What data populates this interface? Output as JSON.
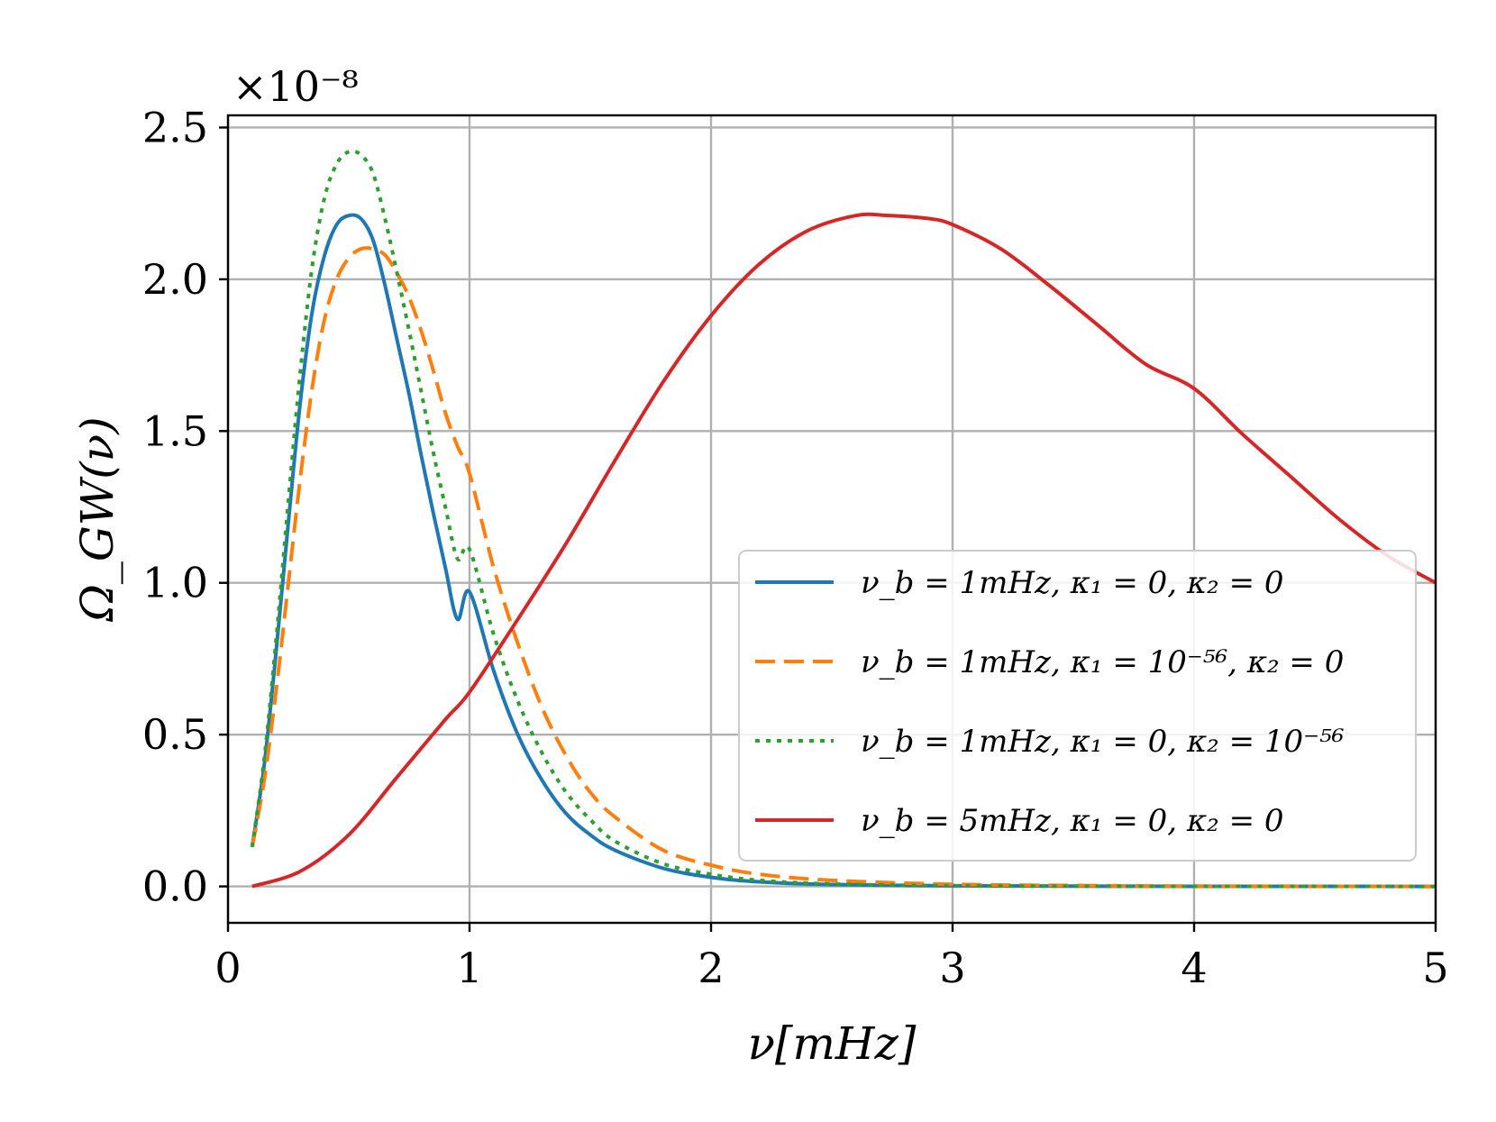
{
  "chart_data": {
    "type": "line",
    "xlabel": "ν[mHz]",
    "ylabel": "Ω_GW(ν)",
    "y_multiplier": "×10⁻⁸",
    "xlim": [
      0,
      5
    ],
    "ylim": [
      -0.12,
      2.54
    ],
    "xticks": [
      0,
      1,
      2,
      3,
      4,
      5
    ],
    "xtick_labels": [
      "0",
      "1",
      "2",
      "3",
      "4",
      "5"
    ],
    "yticks": [
      0.0,
      0.5,
      1.0,
      1.5,
      2.0,
      2.5
    ],
    "ytick_labels": [
      "0.0",
      "0.5",
      "1.0",
      "1.5",
      "2.0",
      "2.5"
    ],
    "grid": true,
    "legend_position": "center-right",
    "series": [
      {
        "name": "ν_b = 1mHz, κ₁ = 0, κ₂ = 0",
        "color": "#1f77b4",
        "style": "solid",
        "x": [
          0.1,
          0.15,
          0.2,
          0.25,
          0.3,
          0.35,
          0.4,
          0.45,
          0.5,
          0.55,
          0.6,
          0.65,
          0.7,
          0.75,
          0.8,
          0.85,
          0.9,
          0.95,
          1.0,
          1.1,
          1.2,
          1.3,
          1.4,
          1.5,
          1.6,
          1.8,
          2.0,
          2.2,
          2.5,
          3.0,
          3.5,
          4.0,
          5.0
        ],
        "y": [
          0.13,
          0.4,
          0.78,
          1.2,
          1.6,
          1.9,
          2.08,
          2.18,
          2.21,
          2.2,
          2.13,
          1.98,
          1.8,
          1.62,
          1.42,
          1.23,
          1.05,
          0.88,
          0.97,
          0.71,
          0.5,
          0.35,
          0.24,
          0.17,
          0.12,
          0.06,
          0.03,
          0.015,
          0.006,
          0.002,
          0.0008,
          0.0003,
          0.0
        ]
      },
      {
        "name": "ν_b = 1mHz, κ₁ = 10⁻⁵⁶, κ₂ = 0",
        "color": "#ff7f0e",
        "style": "dashed",
        "x": [
          0.1,
          0.15,
          0.2,
          0.25,
          0.3,
          0.35,
          0.4,
          0.45,
          0.5,
          0.55,
          0.6,
          0.65,
          0.7,
          0.75,
          0.8,
          0.85,
          0.9,
          0.95,
          1.0,
          1.1,
          1.2,
          1.3,
          1.4,
          1.5,
          1.6,
          1.8,
          2.0,
          2.2,
          2.5,
          3.0,
          3.5,
          4.0,
          5.0
        ],
        "y": [
          0.13,
          0.35,
          0.65,
          1.0,
          1.35,
          1.65,
          1.87,
          2.0,
          2.07,
          2.1,
          2.1,
          2.08,
          2.02,
          1.94,
          1.83,
          1.7,
          1.56,
          1.45,
          1.36,
          1.05,
          0.8,
          0.59,
          0.43,
          0.31,
          0.23,
          0.12,
          0.07,
          0.04,
          0.02,
          0.007,
          0.003,
          0.001,
          0.0
        ]
      },
      {
        "name": "ν_b = 1mHz, κ₁ = 0, κ₂ = 10⁻⁵⁶",
        "color": "#2ca02c",
        "style": "dotted",
        "x": [
          0.1,
          0.15,
          0.2,
          0.25,
          0.3,
          0.35,
          0.4,
          0.45,
          0.5,
          0.55,
          0.6,
          0.65,
          0.7,
          0.75,
          0.8,
          0.85,
          0.9,
          0.95,
          1.0,
          1.1,
          1.2,
          1.3,
          1.4,
          1.5,
          1.6,
          1.8,
          2.0,
          2.2,
          2.5,
          3.0,
          3.5,
          4.0,
          5.0
        ],
        "y": [
          0.13,
          0.42,
          0.82,
          1.27,
          1.7,
          2.05,
          2.27,
          2.38,
          2.42,
          2.41,
          2.35,
          2.2,
          2.02,
          1.83,
          1.63,
          1.43,
          1.25,
          1.08,
          1.11,
          0.83,
          0.61,
          0.44,
          0.31,
          0.22,
          0.15,
          0.075,
          0.04,
          0.02,
          0.008,
          0.002,
          0.0008,
          0.0003,
          0.0
        ]
      },
      {
        "name": "ν_b = 5mHz, κ₁ = 0, κ₂ = 0",
        "color": "#d62728",
        "style": "solid",
        "x": [
          0.1,
          0.3,
          0.5,
          0.7,
          0.9,
          1.0,
          1.2,
          1.4,
          1.6,
          1.8,
          2.0,
          2.2,
          2.4,
          2.6,
          2.73,
          2.9,
          3.0,
          3.2,
          3.4,
          3.6,
          3.8,
          4.0,
          4.2,
          4.4,
          4.6,
          4.8,
          5.0
        ],
        "y": [
          0.0,
          0.05,
          0.17,
          0.36,
          0.55,
          0.64,
          0.88,
          1.13,
          1.4,
          1.66,
          1.88,
          2.05,
          2.16,
          2.21,
          2.21,
          2.2,
          2.18,
          2.1,
          1.98,
          1.85,
          1.72,
          1.64,
          1.49,
          1.35,
          1.21,
          1.09,
          1.0
        ]
      }
    ]
  }
}
